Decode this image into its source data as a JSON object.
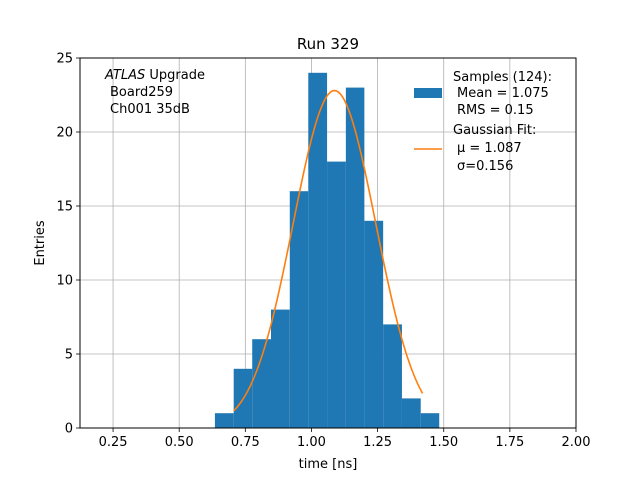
{
  "chart_data": {
    "type": "bar",
    "title": "Run 329",
    "xlabel": "time [ns]",
    "ylabel": "Entries",
    "xlim": [
      0.125,
      2.0
    ],
    "ylim": [
      0,
      25
    ],
    "xticks": [
      "0.25",
      "0.50",
      "0.75",
      "1.00",
      "1.25",
      "1.50",
      "1.75",
      "2.00"
    ],
    "yticks": [
      "0",
      "5",
      "10",
      "15",
      "20",
      "25"
    ],
    "grid": true,
    "legend_position": "top-right",
    "annotation": {
      "italic": "ATLAS",
      "line1_rest": " Upgrade",
      "line2": "Board259",
      "line3": "Ch001 35dB"
    },
    "series": [
      {
        "name": "Samples (124):",
        "kind": "histogram",
        "color": "#1f77b4",
        "stats": [
          "Mean = 1.075",
          "RMS = 0.15"
        ],
        "bin_edges": [
          0.635,
          0.706,
          0.776,
          0.847,
          0.918,
          0.988,
          1.059,
          1.13,
          1.2,
          1.271,
          1.342,
          1.413,
          1.483
        ],
        "counts": [
          1,
          4,
          6,
          8,
          16,
          24,
          18,
          23,
          14,
          7,
          2,
          1
        ]
      },
      {
        "name": "Gaussian Fit:",
        "kind": "line",
        "color": "#ff7f0e",
        "stats": [
          "μ = 1.087",
          "σ=0.156"
        ],
        "mu": 1.087,
        "sigma": 0.156,
        "amplitude": 22.8,
        "x_range": [
          0.706,
          1.42
        ]
      }
    ]
  }
}
